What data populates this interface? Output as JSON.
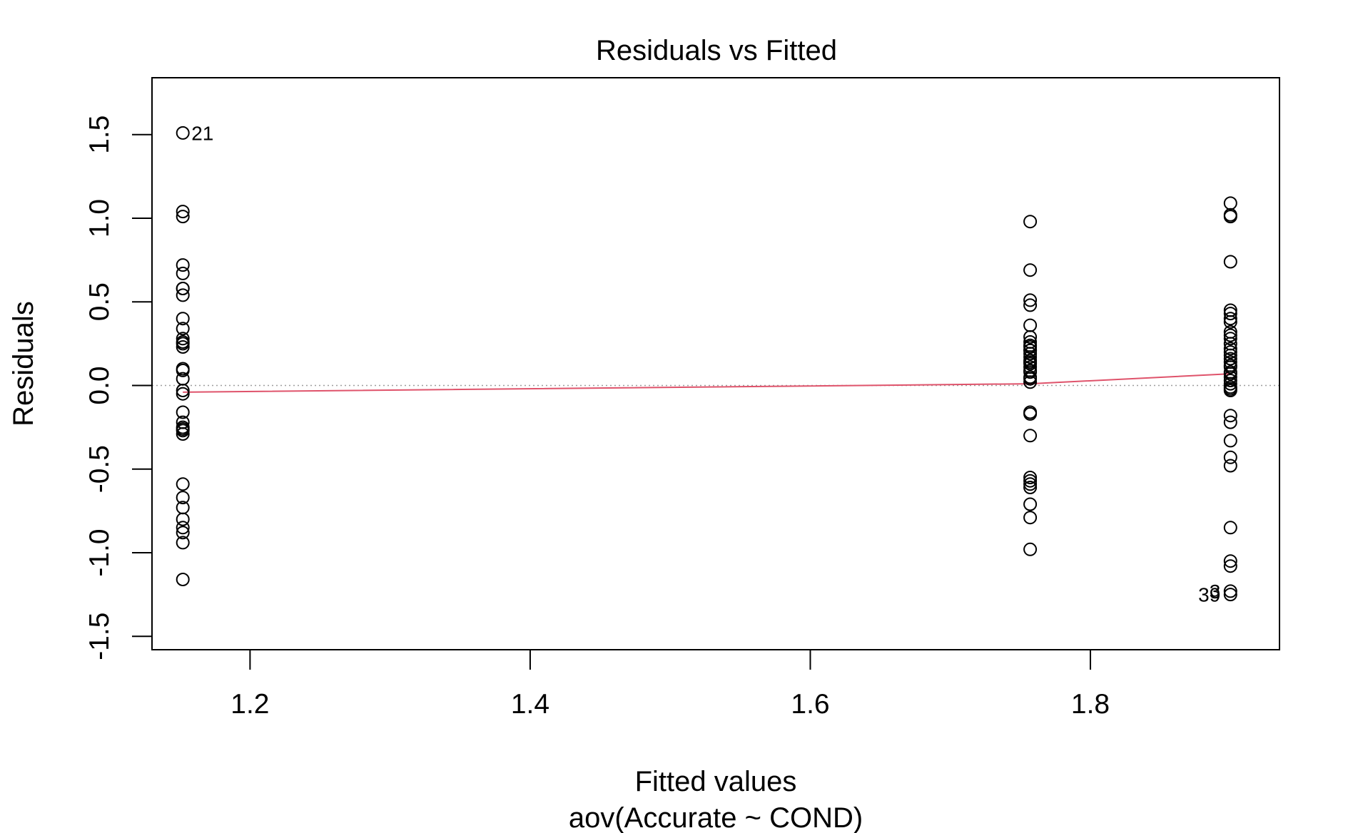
{
  "chart_data": {
    "type": "scatter",
    "title": "Residuals vs Fitted",
    "xlabel": "Fitted values",
    "subtitle": "aov(Accurate ~ COND)",
    "ylabel": "Residuals",
    "xlim": [
      1.13,
      1.935
    ],
    "ylim": [
      -1.58,
      1.84
    ],
    "x_ticks": [
      1.2,
      1.4,
      1.6,
      1.8
    ],
    "x_tick_labels": [
      "1.2",
      "1.4",
      "1.6",
      "1.8"
    ],
    "y_ticks": [
      -1.5,
      -1.0,
      -0.5,
      0.0,
      0.5,
      1.0,
      1.5
    ],
    "y_tick_labels": [
      "-1.5",
      "-1.0",
      "-0.5",
      "0.0",
      "0.5",
      "1.0",
      "1.5"
    ],
    "grid": false,
    "reference_line_y": 0,
    "point_style": "open-circle",
    "point_color": "#000000",
    "smooth_color": "#df536b",
    "reference_color": "#9e9e9e",
    "points": {
      "x": [
        1.152,
        1.152,
        1.152,
        1.152,
        1.152,
        1.152,
        1.152,
        1.152,
        1.152,
        1.152,
        1.152,
        1.152,
        1.152,
        1.152,
        1.152,
        1.152,
        1.152,
        1.152,
        1.152,
        1.152,
        1.152,
        1.152,
        1.152,
        1.152,
        1.152,
        1.152,
        1.152,
        1.152,
        1.152,
        1.152,
        1.152,
        1.152,
        1.152,
        1.757,
        1.757,
        1.757,
        1.757,
        1.757,
        1.757,
        1.757,
        1.757,
        1.757,
        1.757,
        1.757,
        1.757,
        1.757,
        1.757,
        1.757,
        1.757,
        1.757,
        1.757,
        1.757,
        1.757,
        1.757,
        1.757,
        1.757,
        1.757,
        1.757,
        1.757,
        1.757,
        1.757,
        1.757,
        1.757,
        1.757,
        1.757,
        1.9,
        1.9,
        1.9,
        1.9,
        1.9,
        1.9,
        1.9,
        1.9,
        1.9,
        1.9,
        1.9,
        1.9,
        1.9,
        1.9,
        1.9,
        1.9,
        1.9,
        1.9,
        1.9,
        1.9,
        1.9,
        1.9,
        1.9,
        1.9,
        1.9,
        1.9,
        1.9,
        1.9,
        1.9,
        1.9,
        1.9,
        1.9,
        1.9,
        1.9,
        1.9,
        1.9,
        1.9
      ],
      "y": [
        1.51,
        1.04,
        1.01,
        0.72,
        0.67,
        0.58,
        0.54,
        0.4,
        0.34,
        0.28,
        0.25,
        0.23,
        0.1,
        0.09,
        -0.03,
        -0.05,
        -0.16,
        -0.22,
        -0.25,
        -0.27,
        -0.29,
        -0.59,
        -0.67,
        -0.73,
        -0.8,
        -0.85,
        -0.88,
        -0.94,
        -1.16,
        0.26,
        0.04,
        -0.26,
        0.58,
        0.98,
        0.69,
        0.51,
        0.48,
        0.36,
        0.29,
        0.26,
        0.23,
        0.21,
        0.19,
        0.17,
        0.15,
        0.13,
        0.11,
        0.08,
        0.05,
        0.02,
        -0.16,
        -0.17,
        -0.3,
        -0.55,
        -0.57,
        -0.59,
        -0.61,
        -0.71,
        -0.79,
        -0.98,
        0.24,
        0.14,
        0.09,
        0.21,
        0.04,
        1.09,
        1.02,
        1.01,
        0.74,
        0.45,
        0.43,
        0.4,
        0.32,
        0.3,
        0.25,
        0.18,
        0.14,
        0.11,
        0.07,
        0.03,
        0.01,
        -0.02,
        -0.18,
        -0.22,
        -0.33,
        -0.43,
        -0.48,
        -0.85,
        -1.05,
        -1.08,
        -1.23,
        -1.25,
        0.28,
        0.16,
        0.12,
        -0.03,
        0.05,
        0.38,
        0.2,
        0.22,
        0.08,
        -0.01
      ]
    },
    "smooth_line": {
      "x": [
        1.152,
        1.757,
        1.9
      ],
      "y": [
        -0.04,
        0.01,
        0.07
      ]
    },
    "annotations": [
      {
        "text": "21",
        "x": 1.152,
        "y": 1.51,
        "position": "right"
      },
      {
        "text": "39",
        "x": 1.9,
        "y": -1.25,
        "position": "left"
      },
      {
        "text": "3",
        "x": 1.9,
        "y": -1.23,
        "position": "left"
      }
    ]
  }
}
